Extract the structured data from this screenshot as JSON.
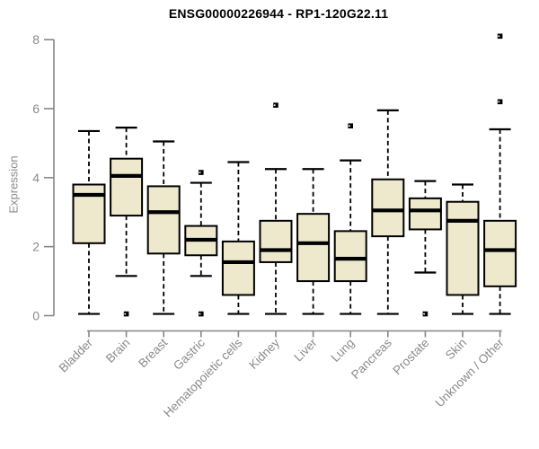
{
  "chart_data": {
    "type": "boxplot",
    "title": "ENSG00000226944 - RP1-120G22.11",
    "xlabel": "",
    "ylabel": "Expression",
    "ylim": [
      0,
      8.4
    ],
    "yticks": [
      0,
      2,
      4,
      6,
      8
    ],
    "grid": false,
    "legend": "none",
    "categories": [
      "Bladder",
      "Brain",
      "Breast",
      "Gastric",
      "Hematopoietic cells",
      "Kidney",
      "Liver",
      "Lung",
      "Pancreas",
      "Prostate",
      "Skin",
      "Unknown / Other"
    ],
    "series": [
      {
        "name": "Bladder",
        "whisker_low": 0.05,
        "q1": 2.1,
        "median": 3.5,
        "q3": 3.8,
        "whisker_high": 5.35,
        "outliers": []
      },
      {
        "name": "Brain",
        "whisker_low": 1.15,
        "q1": 2.9,
        "median": 4.05,
        "q3": 4.55,
        "whisker_high": 5.45,
        "outliers": [
          0.05
        ]
      },
      {
        "name": "Breast",
        "whisker_low": 0.05,
        "q1": 1.8,
        "median": 3.0,
        "q3": 3.75,
        "whisker_high": 5.05,
        "outliers": []
      },
      {
        "name": "Gastric",
        "whisker_low": 1.15,
        "q1": 1.75,
        "median": 2.2,
        "q3": 2.6,
        "whisker_high": 3.85,
        "outliers": [
          4.15,
          0.05
        ]
      },
      {
        "name": "Hematopoietic cells",
        "whisker_low": 0.05,
        "q1": 0.6,
        "median": 1.55,
        "q3": 2.15,
        "whisker_high": 4.45,
        "outliers": []
      },
      {
        "name": "Kidney",
        "whisker_low": 0.05,
        "q1": 1.55,
        "median": 1.9,
        "q3": 2.75,
        "whisker_high": 4.25,
        "outliers": [
          6.1
        ]
      },
      {
        "name": "Liver",
        "whisker_low": 0.05,
        "q1": 1.0,
        "median": 2.1,
        "q3": 2.95,
        "whisker_high": 4.25,
        "outliers": []
      },
      {
        "name": "Lung",
        "whisker_low": 0.05,
        "q1": 1.0,
        "median": 1.65,
        "q3": 2.45,
        "whisker_high": 4.5,
        "outliers": [
          5.5
        ]
      },
      {
        "name": "Pancreas",
        "whisker_low": 0.05,
        "q1": 2.3,
        "median": 3.05,
        "q3": 3.95,
        "whisker_high": 5.95,
        "outliers": []
      },
      {
        "name": "Prostate",
        "whisker_low": 1.25,
        "q1": 2.5,
        "median": 3.05,
        "q3": 3.4,
        "whisker_high": 3.9,
        "outliers": [
          0.05
        ]
      },
      {
        "name": "Skin",
        "whisker_low": 0.05,
        "q1": 0.6,
        "median": 2.75,
        "q3": 3.3,
        "whisker_high": 3.8,
        "outliers": []
      },
      {
        "name": "Unknown / Other",
        "whisker_low": 0.05,
        "q1": 0.85,
        "median": 1.9,
        "q3": 2.75,
        "whisker_high": 5.4,
        "outliers": [
          8.1,
          6.2
        ]
      }
    ],
    "colors": {
      "box_fill": "#EEE8CD",
      "box_border": "#000000",
      "median": "#000000",
      "whisker": "#000000",
      "outlier": "#000000",
      "axis_line": "#878787",
      "tick_text": "#8a8a8a",
      "title_text": "#000000",
      "background": "#ffffff"
    }
  }
}
